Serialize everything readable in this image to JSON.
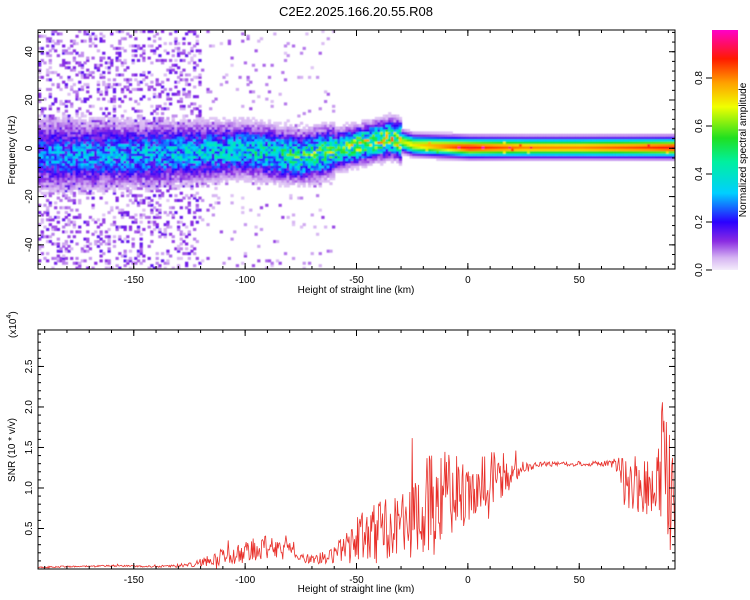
{
  "title": "C2E2.2025.166.20.55.R08",
  "chart_data": [
    {
      "type": "heatmap",
      "xlabel": "Height of straight line (km)",
      "ylabel": "Frequency (Hz)",
      "xlim": [
        -193,
        93
      ],
      "ylim": [
        -50,
        49
      ],
      "xticks": [
        -150,
        -100,
        -50,
        0,
        50
      ],
      "yticks": [
        -40,
        -20,
        0,
        20,
        40
      ],
      "colorbar": {
        "label": "Normalized spectral amplitude",
        "range": [
          0,
          1
        ],
        "ticks": [
          0.0,
          0.2,
          0.4,
          0.6,
          0.8
        ],
        "tick_labels": [
          "0.0",
          "0.2",
          "0.4",
          "0.6",
          "0.8"
        ],
        "colormap": "rainbow: white-violet-blue-cyan-green-yellow-orange-red-magenta"
      },
      "ridge": {
        "x": [
          -193,
          -150,
          -100,
          -75,
          -50,
          -35,
          -25,
          0,
          25,
          50,
          75,
          93
        ],
        "center_hz": [
          -3,
          -3,
          -1,
          -4,
          1,
          4,
          1,
          0,
          0,
          0,
          0,
          0
        ],
        "peak_amplitude": [
          0.25,
          0.3,
          0.35,
          0.45,
          0.55,
          0.6,
          0.7,
          0.9,
          0.8,
          0.8,
          0.85,
          0.9
        ]
      }
    },
    {
      "type": "line",
      "xlabel": "Height of straight line (km)",
      "ylabel": "SNR (10 * v/v)",
      "scale_label": "(x10",
      "scale_exponent": "4",
      "scale_suffix": ")",
      "xlim": [
        -193,
        93
      ],
      "ylim": [
        0,
        2.95
      ],
      "xticks": [
        -150,
        -100,
        -50,
        0,
        50
      ],
      "yticks": [
        0.5,
        1.0,
        1.5,
        2.0,
        2.5
      ],
      "ytick_labels": [
        "0.5",
        "1.0",
        "1.5",
        "2.0",
        "2.5"
      ],
      "line_color": "#e8302a",
      "series": [
        {
          "x": [
            -193,
            -180,
            -160,
            -140,
            -125,
            -115,
            -105,
            -98,
            -92,
            -85,
            -80,
            -75,
            -70,
            -65,
            -60,
            -55,
            -50,
            -45,
            -40,
            -35,
            -30,
            -25,
            -20,
            -15,
            -10,
            -5,
            0,
            5,
            10,
            15,
            20,
            25,
            30,
            40,
            50,
            60,
            65,
            70,
            75,
            80,
            85,
            88,
            90,
            91,
            93
          ],
          "y": [
            0.02,
            0.03,
            0.04,
            0.03,
            0.05,
            0.12,
            0.18,
            0.22,
            0.28,
            0.25,
            0.32,
            0.15,
            0.12,
            0.14,
            0.18,
            0.22,
            0.35,
            0.4,
            0.45,
            0.5,
            0.55,
            0.6,
            0.7,
            0.85,
            0.9,
            0.95,
            0.9,
            1.05,
            1.1,
            1.15,
            1.2,
            1.25,
            1.28,
            1.3,
            1.3,
            1.3,
            1.3,
            1.1,
            1.05,
            1.0,
            1.05,
            1.4,
            1.2,
            0.8,
            0.55
          ],
          "amplitude": [
            0.01,
            0.01,
            0.01,
            0.01,
            0.03,
            0.08,
            0.12,
            0.14,
            0.15,
            0.12,
            0.12,
            0.07,
            0.05,
            0.08,
            0.12,
            0.2,
            0.3,
            0.35,
            0.38,
            0.4,
            0.45,
            0.5,
            0.6,
            0.7,
            0.55,
            0.45,
            0.35,
            0.4,
            0.45,
            0.35,
            0.15,
            0.08,
            0.04,
            0.03,
            0.03,
            0.03,
            0.05,
            0.35,
            0.35,
            0.35,
            0.4,
            0.9,
            1.0,
            0.8,
            0.6
          ]
        }
      ]
    }
  ]
}
